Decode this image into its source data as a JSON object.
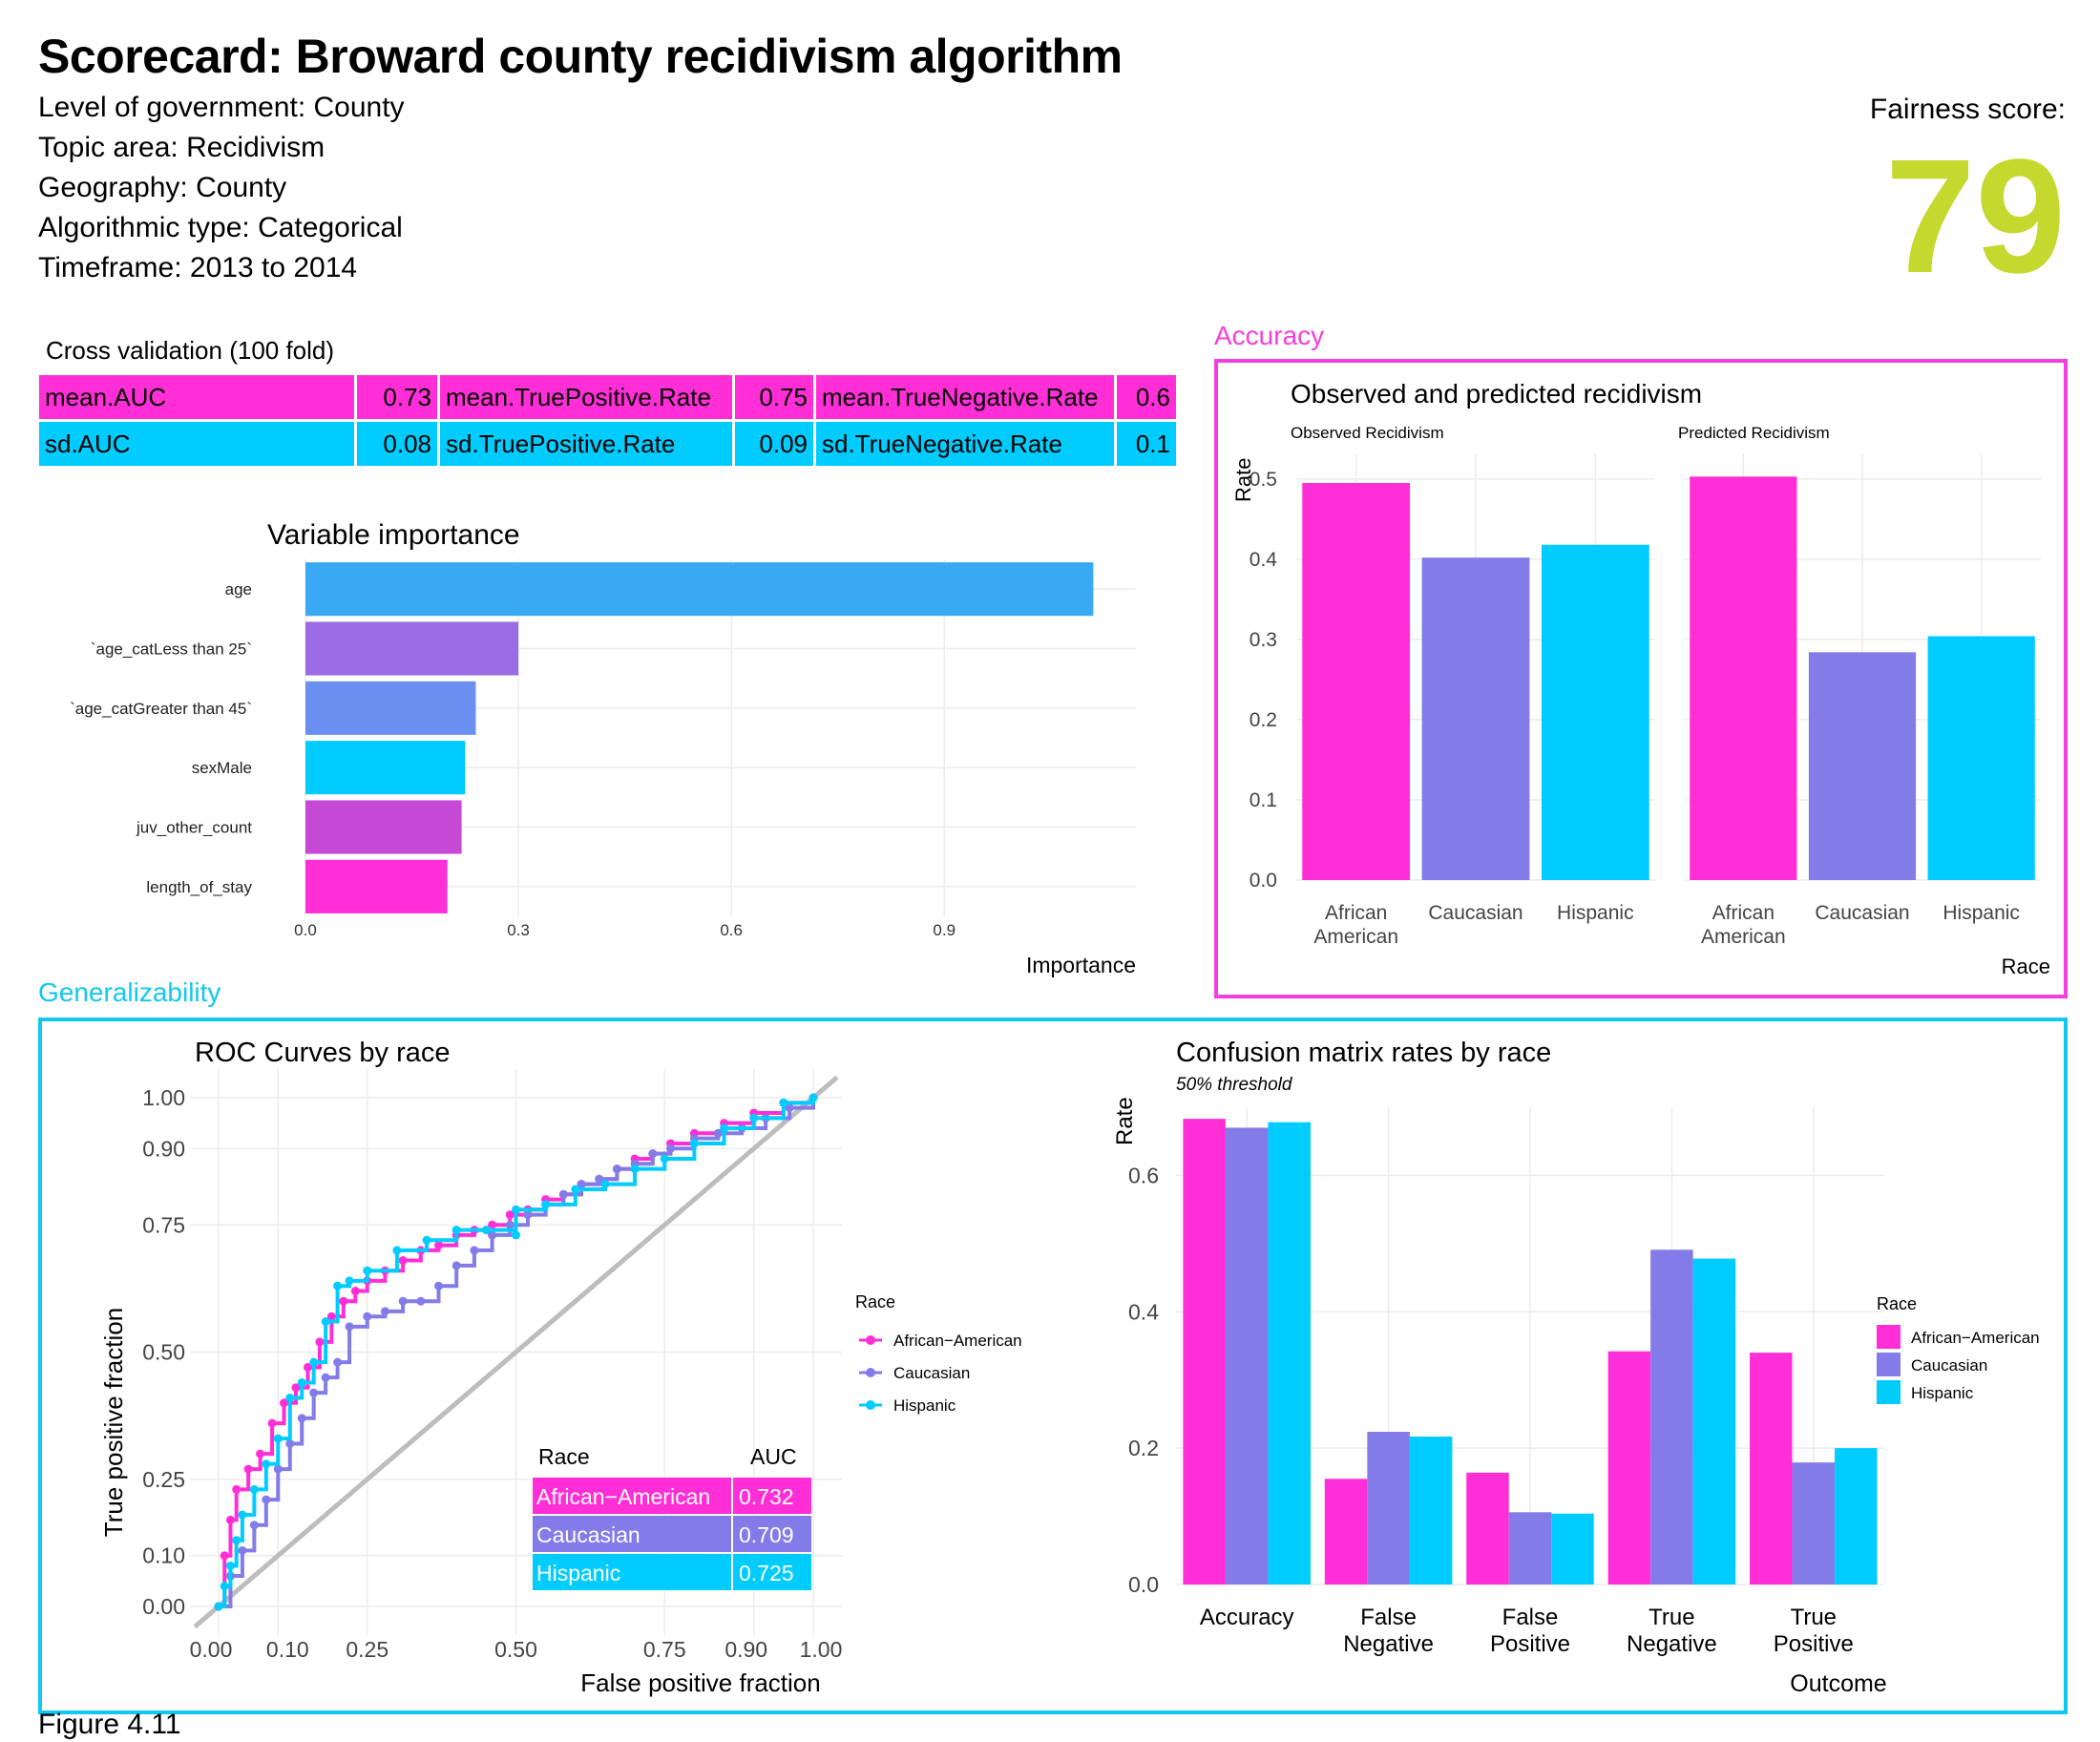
{
  "header": {
    "title": "Scorecard: Broward county recidivism algorithm",
    "meta": [
      "Level of government: County",
      "Topic area: Recidivism",
      "Geography: County",
      "Algorithmic type: Categorical",
      "Timeframe: 2013 to 2014"
    ],
    "fairness_label": "Fairness score:",
    "fairness_value": "79",
    "fairness_color": "#c5d82d"
  },
  "colors": {
    "magenta": "#ff2ed6",
    "purple": "#837ce8",
    "cyan": "#00ccff",
    "accuracy_border": "#f53ee0",
    "generalizability_border": "#10c8f0"
  },
  "cross_validation": {
    "title": "Cross validation (100 fold)",
    "rows": [
      [
        "mean.AUC",
        "0.73",
        "mean.TruePositive.Rate",
        "0.75",
        "mean.TrueNegative.Rate",
        "0.6"
      ],
      [
        "sd.AUC",
        "0.08",
        "sd.TruePositive.Rate",
        "0.09",
        "sd.TrueNegative.Rate",
        "0.1"
      ]
    ]
  },
  "sections": {
    "accuracy": "Accuracy",
    "generalizability": "Generalizability"
  },
  "figure_label": "Figure 4.11",
  "chart_data": [
    {
      "id": "variable_importance",
      "type": "bar",
      "orientation": "horizontal",
      "title": "Variable importance",
      "xlabel": "Importance",
      "categories": [
        "age",
        "`age_catLess than 25`",
        "`age_catGreater than 45`",
        "sexMale",
        "juv_other_count",
        "length_of_stay"
      ],
      "values": [
        1.11,
        0.3,
        0.24,
        0.225,
        0.22,
        0.2
      ],
      "bar_colors": [
        "#3aa9f4",
        "#9a6be3",
        "#6a8ff0",
        "#00ccff",
        "#c64ad6",
        "#ff2ed6"
      ],
      "xticks": [
        0.0,
        0.3,
        0.6,
        0.9
      ],
      "xtick_labels": [
        "0.0",
        "0.3",
        "0.6",
        "0.9"
      ],
      "xlim": [
        0,
        1.17
      ]
    },
    {
      "id": "observed_predicted",
      "type": "bar",
      "title": "Observed and predicted recidivism",
      "ylabel": "Rate",
      "xlabel": "Race",
      "ylim": [
        0,
        0.52
      ],
      "yticks": [
        0.0,
        0.1,
        0.2,
        0.3,
        0.4,
        0.5
      ],
      "ytick_labels": [
        "0.0",
        "0.1",
        "0.2",
        "0.3",
        "0.4",
        "0.5"
      ],
      "facets": [
        {
          "name": "Observed Recidivism",
          "categories": [
            [
              "African",
              "American"
            ],
            [
              "Caucasian"
            ],
            [
              "Hispanic"
            ]
          ],
          "values": [
            0.495,
            0.402,
            0.418
          ]
        },
        {
          "name": "Predicted Recidivism",
          "categories": [
            [
              "African",
              "American"
            ],
            [
              "Caucasian"
            ],
            [
              "Hispanic"
            ]
          ],
          "values": [
            0.503,
            0.284,
            0.304
          ]
        }
      ]
    },
    {
      "id": "roc_curves",
      "type": "line",
      "title": "ROC Curves by race",
      "xlabel": "False positive fraction",
      "ylabel": "True positive fraction",
      "ticks": [
        0.0,
        0.1,
        0.25,
        0.5,
        0.75,
        0.9,
        1.0
      ],
      "tick_labels": [
        "0.00",
        "0.10",
        "0.25",
        "0.50",
        "0.75",
        "0.90",
        "1.00"
      ],
      "legend_title": "Race",
      "series": [
        {
          "name": "African−American",
          "x": [
            0.0,
            0.01,
            0.02,
            0.03,
            0.05,
            0.07,
            0.09,
            0.11,
            0.13,
            0.15,
            0.17,
            0.19,
            0.21,
            0.23,
            0.25,
            0.28,
            0.31,
            0.34,
            0.37,
            0.4,
            0.43,
            0.46,
            0.49,
            0.52,
            0.55,
            0.58,
            0.61,
            0.64,
            0.67,
            0.7,
            0.73,
            0.76,
            0.8,
            0.85,
            0.9,
            0.95,
            1.0
          ],
          "y": [
            0.0,
            0.1,
            0.17,
            0.23,
            0.27,
            0.3,
            0.36,
            0.4,
            0.43,
            0.47,
            0.52,
            0.57,
            0.6,
            0.62,
            0.64,
            0.66,
            0.68,
            0.7,
            0.71,
            0.73,
            0.74,
            0.75,
            0.77,
            0.78,
            0.8,
            0.81,
            0.83,
            0.84,
            0.86,
            0.88,
            0.89,
            0.91,
            0.93,
            0.95,
            0.97,
            0.99,
            1.0
          ]
        },
        {
          "name": "Caucasian",
          "x": [
            0.0,
            0.02,
            0.04,
            0.06,
            0.08,
            0.1,
            0.12,
            0.14,
            0.16,
            0.18,
            0.2,
            0.22,
            0.25,
            0.28,
            0.31,
            0.34,
            0.37,
            0.4,
            0.43,
            0.46,
            0.49,
            0.52,
            0.55,
            0.58,
            0.61,
            0.64,
            0.67,
            0.7,
            0.73,
            0.76,
            0.8,
            0.84,
            0.88,
            0.92,
            0.96,
            1.0
          ],
          "y": [
            0.0,
            0.06,
            0.11,
            0.16,
            0.21,
            0.27,
            0.32,
            0.37,
            0.42,
            0.45,
            0.48,
            0.55,
            0.57,
            0.58,
            0.6,
            0.6,
            0.63,
            0.67,
            0.7,
            0.73,
            0.75,
            0.77,
            0.79,
            0.81,
            0.83,
            0.84,
            0.86,
            0.87,
            0.89,
            0.9,
            0.92,
            0.93,
            0.94,
            0.96,
            0.98,
            1.0
          ]
        },
        {
          "name": "Hispanic",
          "x": [
            0.0,
            0.01,
            0.02,
            0.03,
            0.04,
            0.06,
            0.08,
            0.1,
            0.12,
            0.14,
            0.16,
            0.18,
            0.2,
            0.22,
            0.25,
            0.3,
            0.35,
            0.4,
            0.45,
            0.5,
            0.5,
            0.55,
            0.6,
            0.65,
            0.7,
            0.75,
            0.8,
            0.85,
            0.9,
            0.95,
            1.0
          ],
          "y": [
            0.0,
            0.04,
            0.08,
            0.13,
            0.18,
            0.23,
            0.28,
            0.33,
            0.41,
            0.44,
            0.48,
            0.56,
            0.63,
            0.64,
            0.66,
            0.7,
            0.72,
            0.74,
            0.74,
            0.73,
            0.78,
            0.79,
            0.82,
            0.83,
            0.86,
            0.88,
            0.91,
            0.94,
            0.96,
            0.99,
            1.0
          ]
        }
      ],
      "auc_table": {
        "headers": [
          "Race",
          "AUC"
        ],
        "rows": [
          [
            "African−American",
            "0.732"
          ],
          [
            "Caucasian",
            "0.709"
          ],
          [
            "Hispanic",
            "0.725"
          ]
        ]
      }
    },
    {
      "id": "confusion_matrix",
      "type": "bar",
      "title": "Confusion matrix rates by race",
      "subtitle": "50% threshold",
      "ylabel": "Rate",
      "xlabel": "Outcome",
      "ylim": [
        0,
        0.7
      ],
      "yticks": [
        0.0,
        0.2,
        0.4,
        0.6
      ],
      "ytick_labels": [
        "0.0",
        "0.2",
        "0.4",
        "0.6"
      ],
      "legend_title": "Race",
      "categories": [
        [
          "Accuracy"
        ],
        [
          "False",
          "Negative"
        ],
        [
          "False",
          "Positive"
        ],
        [
          "True",
          "Negative"
        ],
        [
          "True",
          "Positive"
        ]
      ],
      "series": [
        {
          "name": "African−American",
          "values": [
            0.683,
            0.155,
            0.164,
            0.342,
            0.34
          ]
        },
        {
          "name": "Caucasian",
          "values": [
            0.67,
            0.224,
            0.106,
            0.491,
            0.179
          ]
        },
        {
          "name": "Hispanic",
          "values": [
            0.678,
            0.217,
            0.104,
            0.478,
            0.2
          ]
        }
      ]
    }
  ]
}
